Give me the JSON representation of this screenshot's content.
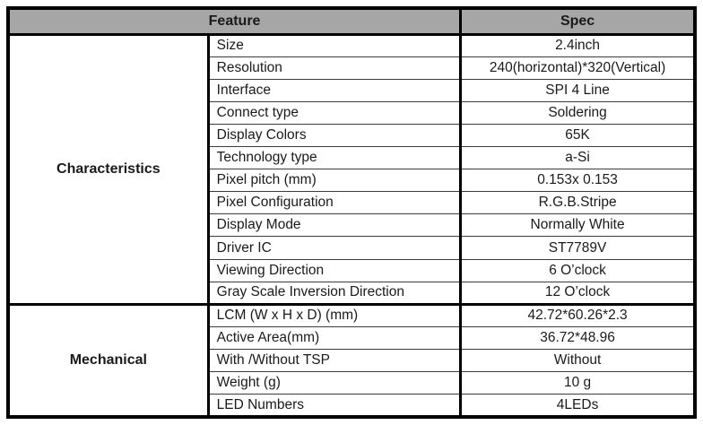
{
  "colors": {
    "header_bg": "#a6a6a6",
    "border": "#000000",
    "row_divider": "#3c3c3c",
    "text": "#1a1a1a"
  },
  "table": {
    "header": {
      "feature_label": "Feature",
      "spec_label": "Spec"
    },
    "sections": [
      {
        "category": "Characteristics",
        "rows": [
          {
            "feature": "Size",
            "spec": "2.4inch"
          },
          {
            "feature": "Resolution",
            "spec": "240(horizontal)*320(Vertical)"
          },
          {
            "feature": "Interface",
            "spec": "SPI 4 Line"
          },
          {
            "feature": "Connect type",
            "spec": "Soldering"
          },
          {
            "feature": "Display Colors",
            "spec": "65K"
          },
          {
            "feature": "Technology type",
            "spec": "a-Si"
          },
          {
            "feature": "Pixel pitch (mm)",
            "spec": "0.153x 0.153"
          },
          {
            "feature": "Pixel Configuration",
            "spec": "R.G.B.Stripe"
          },
          {
            "feature": "Display Mode",
            "spec": "Normally White"
          },
          {
            "feature": "Driver IC",
            "spec": "ST7789V"
          },
          {
            "feature": "Viewing Direction",
            "spec": "6 O’clock"
          },
          {
            "feature": "Gray Scale Inversion Direction",
            "spec": "12 O’clock"
          }
        ]
      },
      {
        "category": "Mechanical",
        "rows": [
          {
            "feature": "LCM (W x H x D) (mm)",
            "spec": "42.72*60.26*2.3"
          },
          {
            "feature": "Active Area(mm)",
            "spec": "36.72*48.96"
          },
          {
            "feature": "With /Without TSP",
            "spec": "Without"
          },
          {
            "feature": "Weight (g)",
            "spec": "10 g"
          },
          {
            "feature": "LED Numbers",
            "spec": "4LEDs"
          }
        ]
      }
    ]
  }
}
